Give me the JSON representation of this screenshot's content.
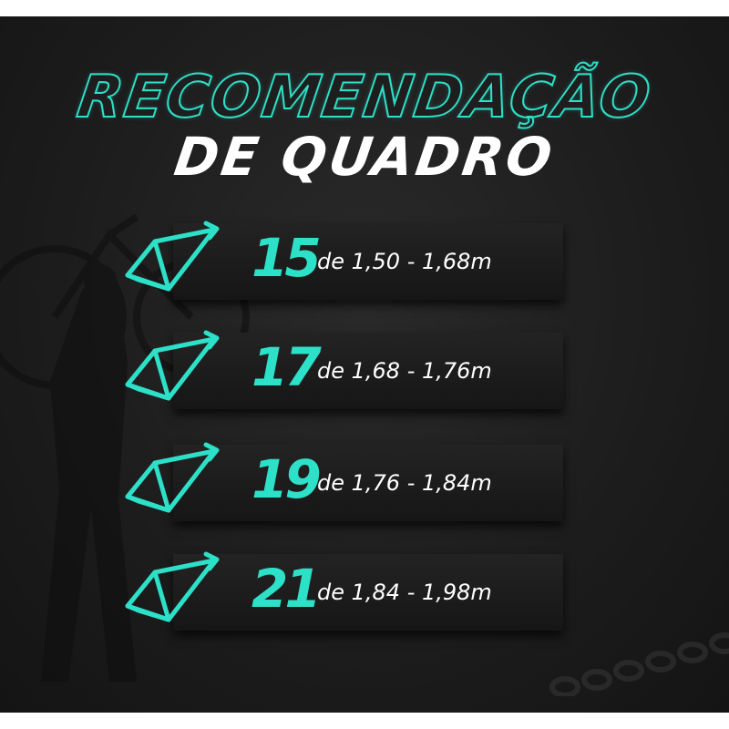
{
  "title": {
    "line1": "RECOMENDAÇÃO",
    "line2": "DE QUADRO"
  },
  "accent_color": "#2de0c8",
  "rows": [
    {
      "size": "15",
      "range": "de 1,50 - 1,68m",
      "icon": "bike-frame-icon"
    },
    {
      "size": "17",
      "range": "de 1,68 - 1,76m",
      "icon": "bike-frame-icon"
    },
    {
      "size": "19",
      "range": "de 1,76 - 1,84m",
      "icon": "bike-frame-icon"
    },
    {
      "size": "21",
      "range": "de 1,84 - 1,98m",
      "icon": "bike-frame-icon"
    }
  ]
}
